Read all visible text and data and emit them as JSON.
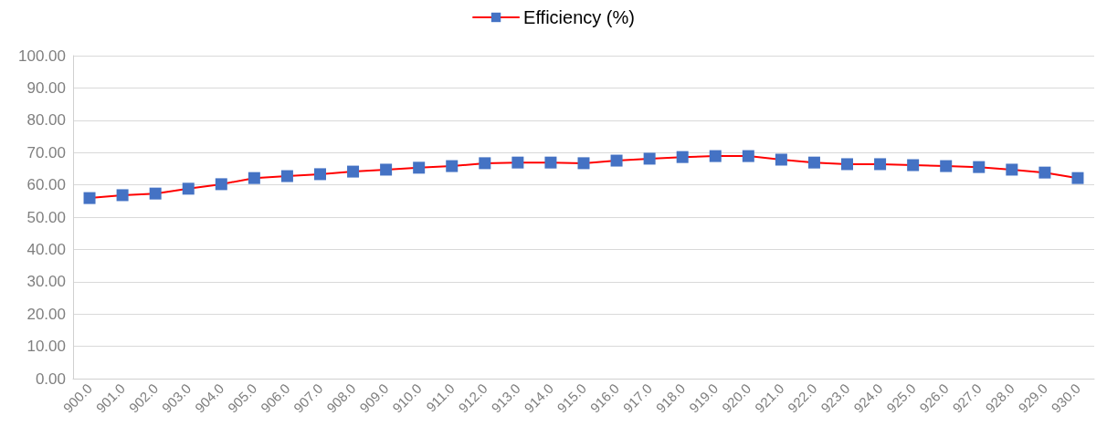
{
  "chart_data": {
    "type": "line",
    "categories": [
      "900.0",
      "901.0",
      "902.0",
      "903.0",
      "904.0",
      "905.0",
      "906.0",
      "907.0",
      "908.0",
      "909.0",
      "910.0",
      "911.0",
      "912.0",
      "913.0",
      "914.0",
      "915.0",
      "916.0",
      "917.0",
      "918.0",
      "919.0",
      "920.0",
      "921.0",
      "922.0",
      "923.0",
      "924.0",
      "925.0",
      "926.0",
      "927.0",
      "928.0",
      "929.0",
      "930.0"
    ],
    "series": [
      {
        "name": "Efficiency (%)",
        "color": "#ff0000",
        "colors": [
          "#4472c4",
          "#4472c4",
          "#4472c4",
          "#4472c4",
          "#4472c4",
          "#4472c4",
          "#4472c4",
          "#4472c4",
          "#4472c4",
          "#4472c4",
          "#4472c4",
          "#4472c4",
          "#4472c4",
          "#4472c4",
          "#4472c4",
          "#4472c4",
          "#4472c4",
          "#4472c4",
          "#4472c4",
          "#4472c4",
          "#4472c4",
          "#4472c4",
          "#4472c4",
          "#4472c4",
          "#4472c4",
          "#4472c4",
          "#4472c4",
          "#4472c4",
          "#4472c4",
          "#4472c4",
          "#4472c4"
        ],
        "values": [
          55.9,
          56.8,
          57.3,
          58.8,
          60.2,
          62.1,
          62.7,
          63.3,
          64.1,
          64.7,
          65.3,
          65.8,
          66.7,
          66.9,
          66.9,
          66.7,
          67.5,
          68.1,
          68.6,
          68.9,
          68.9,
          67.8,
          66.9,
          66.4,
          66.4,
          66.1,
          65.8,
          65.5,
          64.7,
          63.8,
          62.1
        ]
      }
    ],
    "ylim": [
      0,
      100
    ],
    "yticks": [
      {
        "value": 0,
        "label": "0.00"
      },
      {
        "value": 10,
        "label": "10.00"
      },
      {
        "value": 20,
        "label": "20.00"
      },
      {
        "value": 30,
        "label": "30.00"
      },
      {
        "value": 40,
        "label": "40.00"
      },
      {
        "value": 50,
        "label": "50.00"
      },
      {
        "value": 60,
        "label": "60.00"
      },
      {
        "value": 70,
        "label": "70.00"
      },
      {
        "value": 80,
        "label": "80.00"
      },
      {
        "value": 90,
        "label": "90.00"
      },
      {
        "value": 100,
        "label": "100.00"
      }
    ],
    "grid": "y",
    "legend": "top",
    "marker": "square",
    "line_style": "solid"
  }
}
